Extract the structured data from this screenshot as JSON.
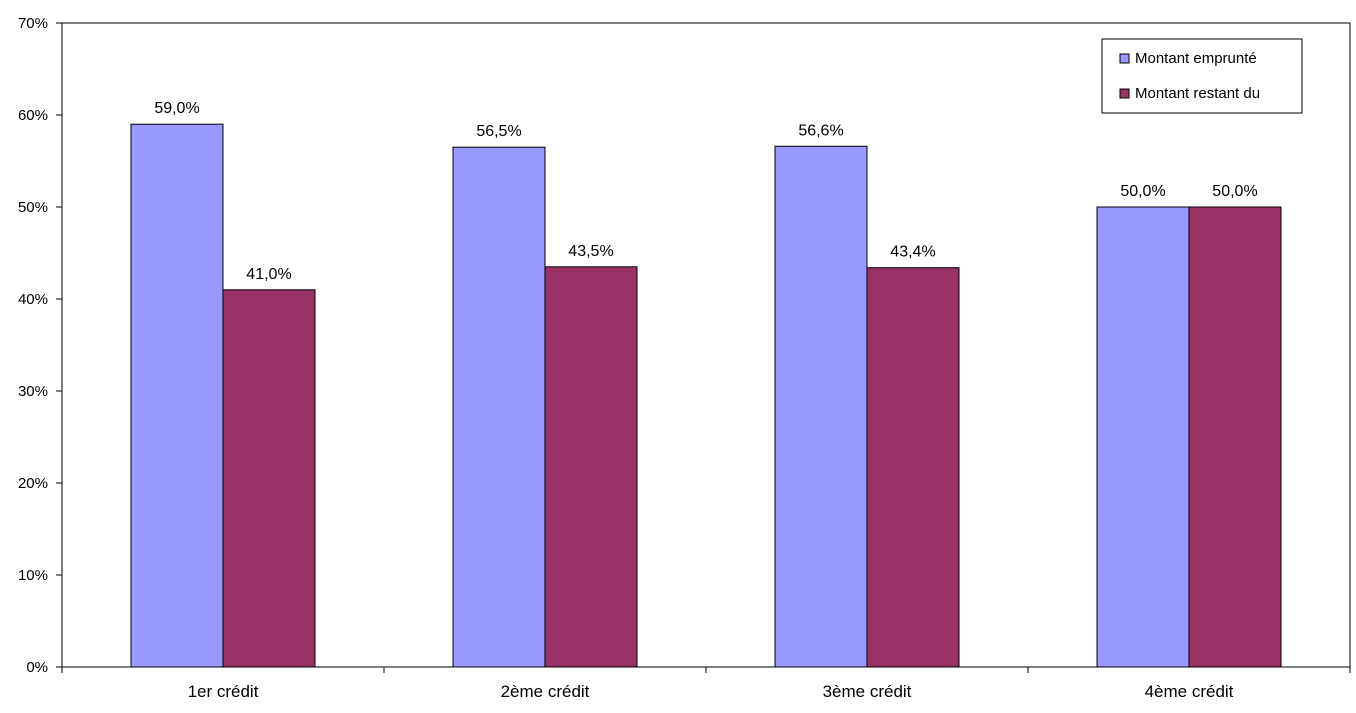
{
  "chart_data": {
    "type": "bar",
    "categories": [
      "1er crédit",
      "2ème crédit",
      "3ème crédit",
      "4ème crédit"
    ],
    "series": [
      {
        "name": "Montant emprunté",
        "values": [
          59.0,
          56.5,
          56.6,
          50.0
        ],
        "labels": [
          "59,0%",
          "56,5%",
          "56,6%",
          "50,0%"
        ],
        "color": "#9999ff"
      },
      {
        "name": "Montant restant du",
        "values": [
          41.0,
          43.5,
          43.4,
          50.0
        ],
        "labels": [
          "41,0%",
          "43,5%",
          "43,4%",
          "50,0%"
        ],
        "color": "#993366"
      }
    ],
    "ylim": [
      0,
      70
    ],
    "yticks": [
      0,
      10,
      20,
      30,
      40,
      50,
      60,
      70
    ],
    "ytick_labels": [
      "0%",
      "10%",
      "20%",
      "30%",
      "40%",
      "50%",
      "60%",
      "70%"
    ],
    "title": "",
    "xlabel": "",
    "ylabel": "",
    "grid": false,
    "legend_position": "top-right"
  }
}
